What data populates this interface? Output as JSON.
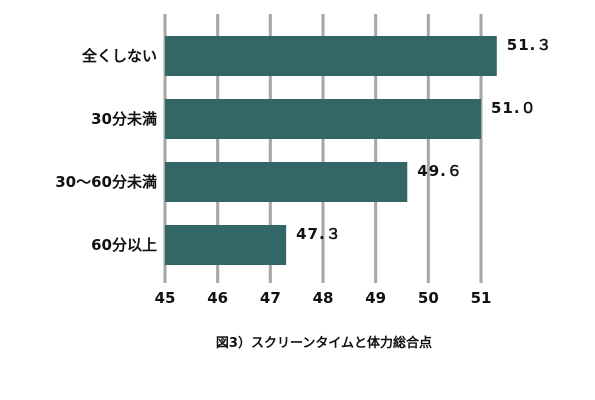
{
  "chart_data": {
    "type": "bar",
    "orientation": "horizontal",
    "title": "図3）スクリーンタイムと体力総合点",
    "xlabel": "",
    "ylabel": "",
    "categories": [
      "全くしない",
      "30分未満",
      "30〜60分未満",
      "60分以上"
    ],
    "values": [
      51.3,
      51.0,
      49.6,
      47.3
    ],
    "data_labels": [
      "51.３",
      "51.０",
      "49.６",
      "47.３"
    ],
    "xlim": [
      45,
      51
    ],
    "ticks": [
      45,
      46,
      47,
      48,
      49,
      50,
      51
    ],
    "tick_labels": [
      "45",
      "46",
      "47",
      "48",
      "49",
      "50",
      "51"
    ],
    "grid": "vertical",
    "legend": "none",
    "colors": {
      "bar": "#336666",
      "grid": "#a6a6a6",
      "text": "#111111"
    }
  }
}
